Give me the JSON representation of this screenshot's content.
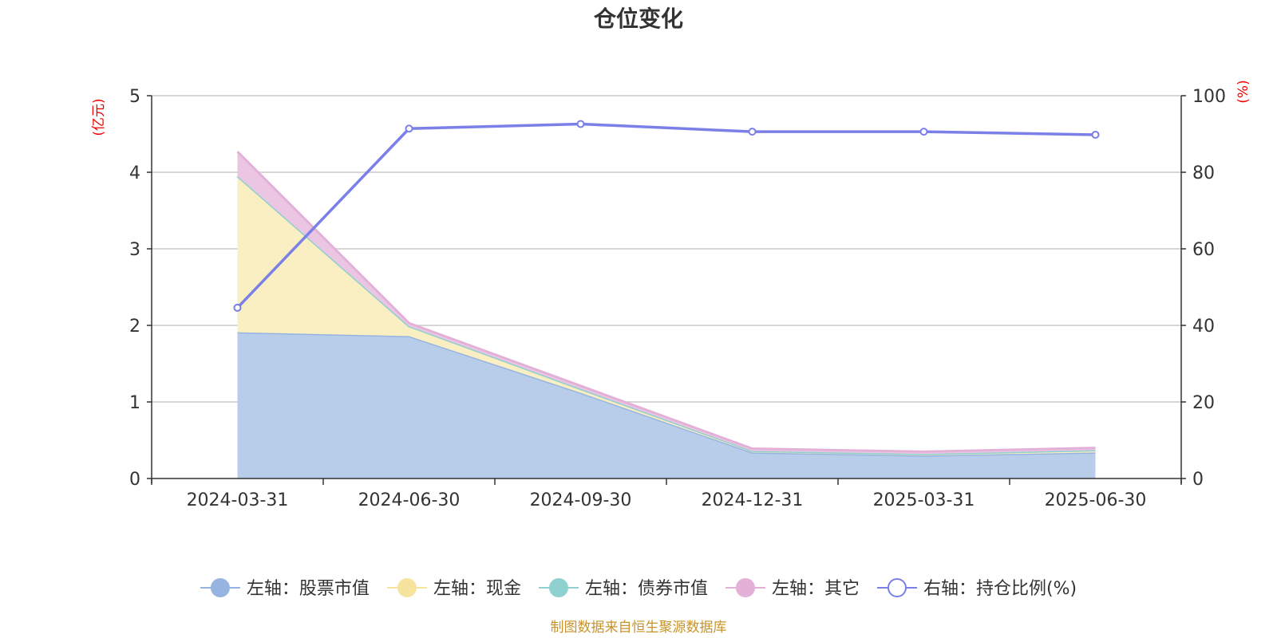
{
  "chart_data": {
    "type": "area",
    "title": "仓位变化",
    "left_unit": "(亿元)",
    "right_unit": "(%)",
    "categories": [
      "2024-03-31",
      "2024-06-30",
      "2024-09-30",
      "2024-12-31",
      "2025-03-31",
      "2025-06-30"
    ],
    "left_axis": {
      "ylim": [
        0,
        5
      ],
      "ticks": [
        0,
        1,
        2,
        3,
        4,
        5
      ]
    },
    "right_axis": {
      "ylim": [
        0,
        100
      ],
      "ticks": [
        0,
        20,
        40,
        60,
        80,
        100
      ]
    },
    "stacked_series": [
      {
        "name": "左轴：股票市值",
        "axis": "left",
        "fill": "#b8cdea",
        "stroke": "#97b4e0",
        "values": [
          1.91,
          1.86,
          1.12,
          0.34,
          0.3,
          0.34
        ]
      },
      {
        "name": "左轴：现金",
        "axis": "left",
        "fill": "#faefc2",
        "stroke": "#f6e49e",
        "values": [
          2.04,
          0.13,
          0.05,
          0.02,
          0.02,
          0.03
        ]
      },
      {
        "name": "左轴：债券市值",
        "axis": "left",
        "fill": "#9fd8d6",
        "stroke": "#8fd0d0",
        "values": [
          0,
          0,
          0,
          0,
          0,
          0
        ]
      },
      {
        "name": "左轴：其它",
        "axis": "left",
        "fill": "#eac6e3",
        "stroke": "#e3b1d8",
        "values": [
          0.32,
          0.04,
          0.04,
          0.03,
          0.03,
          0.03
        ]
      }
    ],
    "line_series": [
      {
        "name": "右轴：持仓比例(%)",
        "axis": "right",
        "color": "#7b7fe8",
        "values": [
          44.6,
          91.4,
          92.6,
          90.6,
          90.6,
          89.8
        ]
      }
    ],
    "grid": true,
    "legend_position": "bottom"
  },
  "source_note": "制图数据来自恒生聚源数据库"
}
